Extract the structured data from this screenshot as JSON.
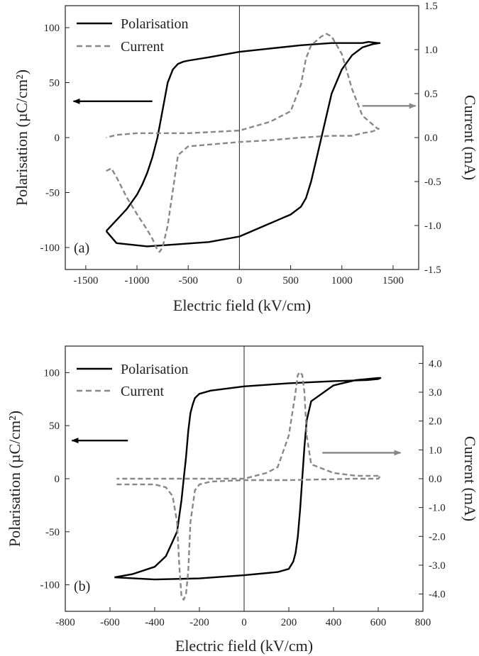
{
  "colors": {
    "polarisation": "#000000",
    "current": "#888888",
    "axis": "#222222"
  },
  "chart_data": [
    {
      "type": "line",
      "panel_label": "(a)",
      "xlabel": "Electric field (kV/cm)",
      "ylabel": "Polarisation (µC/cm²)",
      "y2label": "Current (mA)",
      "xlim": [
        -1700,
        1750
      ],
      "ylim": [
        -120,
        120
      ],
      "y2lim": [
        -1.5,
        1.5
      ],
      "xticks": [
        -1500,
        -1000,
        -500,
        0,
        500,
        1000,
        1500
      ],
      "xtick_labels": [
        "-1500",
        "-1000",
        "-500",
        "0",
        "500",
        "1000",
        "1500"
      ],
      "yticks": [
        -100,
        -50,
        0,
        50,
        100
      ],
      "ytick_labels": [
        "-100",
        "-50",
        "0",
        "50",
        "100"
      ],
      "y2ticks": [
        -1.5,
        -1.0,
        -0.5,
        0.0,
        0.5,
        1.0,
        1.5
      ],
      "y2tick_labels": [
        "-1.5",
        "-1.0",
        "-0.5",
        "0.0",
        "0.5",
        "1.0",
        "1.5"
      ],
      "legend": [
        "Polarisation",
        "Current"
      ],
      "arrows": {
        "left": {
          "x_from": -850,
          "x_to": -1620,
          "y": 33
        },
        "right": {
          "x_from": 1200,
          "x_to": 1720,
          "y": 0.36
        }
      },
      "series": [
        {
          "name": "Polarisation",
          "axis": "left",
          "style": "solid",
          "x": [
            -1300,
            -1200,
            -1100,
            -1000,
            -950,
            -900,
            -850,
            -800,
            -750,
            -700,
            -650,
            -600,
            -550,
            -500,
            -300,
            0,
            300,
            600,
            900,
            1000,
            1100,
            1200,
            1260,
            1350,
            1370,
            1300,
            1200,
            1100,
            1000,
            900,
            850,
            800,
            750,
            700,
            650,
            600,
            500,
            400,
            0,
            -300,
            -600,
            -900,
            -1200,
            -1300
          ],
          "y": [
            -85,
            -75,
            -65,
            -52,
            -43,
            -32,
            -18,
            0,
            25,
            50,
            62,
            67,
            69,
            70,
            73,
            78,
            81,
            84,
            86,
            86,
            86,
            86,
            87,
            86,
            86,
            85,
            82,
            75,
            62,
            40,
            20,
            0,
            -20,
            -40,
            -55,
            -63,
            -70,
            -74,
            -90,
            -95,
            -97,
            -99,
            -96,
            -85
          ]
        },
        {
          "name": "Current",
          "axis": "right",
          "style": "dashed",
          "x": [
            -1300,
            -1250,
            -1200,
            -1100,
            -1000,
            -900,
            -850,
            -800,
            -780,
            -750,
            -700,
            -650,
            -600,
            -500,
            0,
            300,
            600,
            900,
            1100,
            1200,
            1300,
            1360,
            1350,
            1300,
            1200,
            1100,
            1000,
            900,
            850,
            800,
            750,
            700,
            650,
            600,
            550,
            500,
            300,
            0,
            -500,
            -800,
            -1000,
            -1200,
            -1300
          ],
          "y": [
            -0.38,
            -0.35,
            -0.45,
            -0.68,
            -0.87,
            -1.05,
            -1.15,
            -1.28,
            -1.3,
            -1.25,
            -1.0,
            -0.6,
            -0.2,
            -0.1,
            -0.05,
            -0.03,
            0.0,
            0.02,
            0.02,
            0.05,
            0.07,
            0.1,
            0.1,
            0.15,
            0.25,
            0.55,
            0.95,
            1.15,
            1.18,
            1.15,
            1.1,
            1.05,
            0.9,
            0.6,
            0.45,
            0.3,
            0.18,
            0.08,
            0.05,
            0.05,
            0.05,
            0.03,
            0.0
          ]
        }
      ]
    },
    {
      "type": "line",
      "panel_label": "(b)",
      "xlabel": "Electric field (kV/cm)",
      "ylabel": "Polarisation (µC/cm²)",
      "y2label": "Current (mA)",
      "xlim": [
        -800,
        800
      ],
      "ylim": [
        -125,
        125
      ],
      "y2lim": [
        -4.6,
        4.6
      ],
      "xticks": [
        -800,
        -600,
        -400,
        -200,
        0,
        200,
        400,
        600,
        800
      ],
      "xtick_labels": [
        "-800",
        "-600",
        "-400",
        "-200",
        "0",
        "200",
        "400",
        "600",
        "800"
      ],
      "yticks": [
        -100,
        -50,
        0,
        50,
        100
      ],
      "ytick_labels": [
        "-100",
        "-50",
        "0",
        "50",
        "100"
      ],
      "y2ticks": [
        -4.0,
        -3.0,
        -2.0,
        -1.0,
        0.0,
        1.0,
        2.0,
        3.0,
        4.0
      ],
      "y2tick_labels": [
        "-4.0",
        "-3.0",
        "-2.0",
        "-1.0",
        "0.0",
        "1.0",
        "2.0",
        "3.0",
        "4.0"
      ],
      "legend": [
        "Polarisation",
        "Current"
      ],
      "arrows": {
        "left": {
          "x_from": -520,
          "x_to": -770,
          "y": 36
        },
        "right": {
          "x_from": 350,
          "x_to": 700,
          "y": 0.9
        }
      },
      "series": [
        {
          "name": "Polarisation",
          "axis": "left",
          "style": "solid",
          "x": [
            -580,
            -500,
            -400,
            -350,
            -300,
            -280,
            -270,
            -260,
            -250,
            -240,
            -230,
            -220,
            -200,
            -150,
            0,
            200,
            400,
            550,
            600,
            610,
            600,
            500,
            400,
            300,
            280,
            270,
            260,
            250,
            240,
            230,
            220,
            200,
            150,
            0,
            -200,
            -400,
            -580
          ],
          "y": [
            -93,
            -90,
            -83,
            -73,
            -50,
            -20,
            0,
            20,
            45,
            62,
            70,
            76,
            80,
            83,
            87,
            90,
            92,
            93,
            94,
            95,
            95,
            93,
            88,
            73,
            55,
            30,
            0,
            -30,
            -55,
            -70,
            -78,
            -85,
            -88,
            -91,
            -94,
            -95,
            -93
          ]
        },
        {
          "name": "Current",
          "axis": "right",
          "style": "dashed",
          "x": [
            -570,
            -500,
            -400,
            -350,
            -320,
            -300,
            -290,
            -280,
            -270,
            -260,
            -250,
            -240,
            -220,
            -200,
            -150,
            0,
            200,
            500,
            600,
            610,
            600,
            500,
            400,
            300,
            280,
            270,
            260,
            250,
            240,
            230,
            220,
            200,
            150,
            100,
            0,
            -200,
            -400,
            -570
          ],
          "y": [
            -0.2,
            -0.2,
            -0.2,
            -0.3,
            -0.6,
            -1.5,
            -3.0,
            -4.1,
            -4.2,
            -4.0,
            -3.2,
            -1.5,
            -0.4,
            -0.2,
            -0.1,
            -0.05,
            -0.05,
            0.0,
            0.0,
            0.1,
            0.1,
            0.1,
            0.2,
            0.5,
            1.5,
            3.0,
            3.6,
            3.7,
            3.6,
            3.0,
            2.5,
            1.5,
            0.4,
            0.2,
            0.0,
            0.0,
            0.0,
            0.0
          ]
        }
      ]
    }
  ]
}
